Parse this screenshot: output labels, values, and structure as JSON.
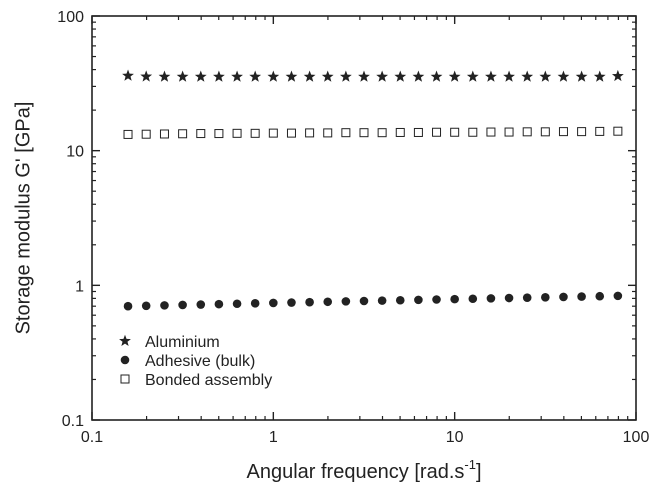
{
  "chart_data": {
    "type": "scatter",
    "xlabel": "Angular frequency [rad.s",
    "xlabel_sup": "-1",
    "xlabel_close": "]",
    "ylabel": "Storage modulus G' [GPa]",
    "x_scale": "log",
    "y_scale": "log",
    "xlim": [
      0.1,
      100
    ],
    "ylim": [
      0.1,
      100
    ],
    "x_ticks": [
      {
        "value": 0.1,
        "label": "0.1"
      },
      {
        "value": 1,
        "label": "1"
      },
      {
        "value": 10,
        "label": "10"
      },
      {
        "value": 100,
        "label": "100"
      }
    ],
    "y_ticks": [
      {
        "value": 0.1,
        "label": "0.1"
      },
      {
        "value": 1,
        "label": "1"
      },
      {
        "value": 10,
        "label": "10"
      },
      {
        "value": 100,
        "label": "100"
      }
    ],
    "grid": false,
    "legend_position": "bottom-left",
    "series": [
      {
        "name": "Aluminium",
        "marker": "star",
        "x": [
          0.158,
          0.199,
          0.251,
          0.316,
          0.398,
          0.501,
          0.631,
          0.794,
          1.0,
          1.259,
          1.585,
          1.995,
          2.512,
          3.162,
          3.981,
          5.012,
          6.31,
          7.943,
          10.0,
          12.59,
          15.85,
          19.95,
          25.12,
          31.62,
          39.81,
          50.12,
          63.1,
          79.43
        ],
        "y": [
          36,
          35.5,
          35.4,
          35.4,
          35.4,
          35.4,
          35.4,
          35.4,
          35.4,
          35.4,
          35.4,
          35.4,
          35.4,
          35.4,
          35.4,
          35.4,
          35.4,
          35.4,
          35.4,
          35.4,
          35.4,
          35.4,
          35.4,
          35.4,
          35.4,
          35.4,
          35.4,
          35.8
        ]
      },
      {
        "name": "Adhesive (bulk)",
        "marker": "filled-circle",
        "x": [
          0.158,
          0.199,
          0.251,
          0.316,
          0.398,
          0.501,
          0.631,
          0.794,
          1.0,
          1.259,
          1.585,
          1.995,
          2.512,
          3.162,
          3.981,
          5.012,
          6.31,
          7.943,
          10.0,
          12.59,
          15.85,
          19.95,
          25.12,
          31.62,
          39.81,
          50.12,
          63.1,
          79.43
        ],
        "y": [
          0.7,
          0.705,
          0.71,
          0.715,
          0.72,
          0.725,
          0.73,
          0.735,
          0.74,
          0.745,
          0.75,
          0.755,
          0.76,
          0.765,
          0.77,
          0.775,
          0.78,
          0.785,
          0.79,
          0.795,
          0.8,
          0.805,
          0.81,
          0.815,
          0.82,
          0.825,
          0.83,
          0.835
        ]
      },
      {
        "name": "Bonded assembly",
        "marker": "open-square",
        "x": [
          0.158,
          0.199,
          0.251,
          0.316,
          0.398,
          0.501,
          0.631,
          0.794,
          1.0,
          1.259,
          1.585,
          1.995,
          2.512,
          3.162,
          3.981,
          5.012,
          6.31,
          7.943,
          10.0,
          12.59,
          15.85,
          19.95,
          25.12,
          31.62,
          39.81,
          50.12,
          63.1,
          79.43
        ],
        "y": [
          13.2,
          13.25,
          13.3,
          13.35,
          13.4,
          13.4,
          13.45,
          13.45,
          13.5,
          13.5,
          13.55,
          13.55,
          13.6,
          13.6,
          13.6,
          13.65,
          13.65,
          13.7,
          13.7,
          13.7,
          13.75,
          13.75,
          13.8,
          13.8,
          13.85,
          13.85,
          13.9,
          13.95
        ]
      }
    ]
  },
  "colors": {
    "ink": "#222222",
    "background": "#ffffff"
  }
}
